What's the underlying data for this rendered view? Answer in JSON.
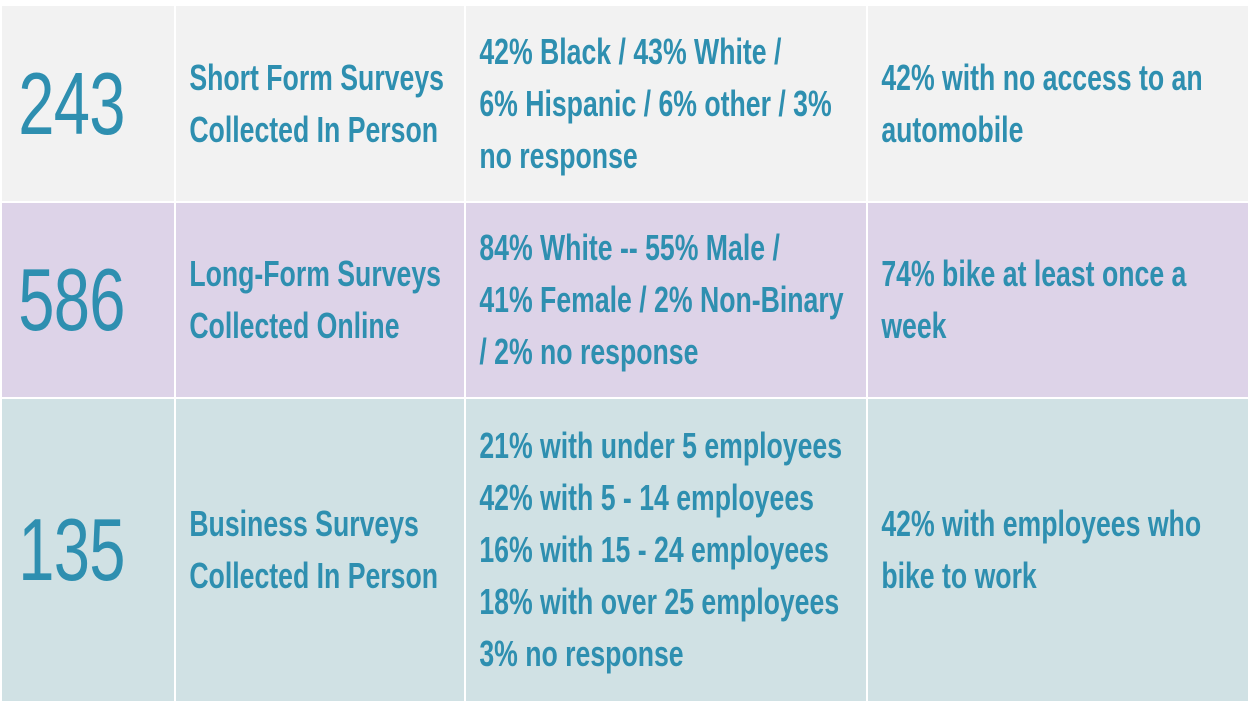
{
  "rows": [
    {
      "count": "243",
      "type_lines": [
        "Short Form Surveys",
        "Collected In Person"
      ],
      "demographics_lines": [
        "42% Black / 43% White /",
        "6% Hispanic / 6% other / 3%",
        "no response"
      ],
      "highlight_lines": [
        "42% with no access to an",
        "automobile"
      ]
    },
    {
      "count": "586",
      "type_lines": [
        "Long-Form Surveys",
        "Collected Online"
      ],
      "demographics_lines": [
        "84% White -- 55% Male /",
        "41% Female / 2% Non-Binary",
        "/ 2% no response"
      ],
      "highlight_lines": [
        "74% bike at least once a",
        "week"
      ]
    },
    {
      "count": "135",
      "type_lines": [
        "Business Surveys",
        "Collected In Person"
      ],
      "demographics_lines": [
        "21% with under 5 employees",
        "42% with 5 - 14 employees",
        "16% with 15 - 24 employees",
        "18% with over 25 employees",
        "3% no response"
      ],
      "highlight_lines": [
        "42% with employees who",
        "bike to work"
      ]
    }
  ],
  "colors": {
    "text": "#2e8fb0",
    "row1_bg": "#f2f2f2",
    "row2_bg": "#ddd3e8",
    "row3_bg": "#d0e1e4",
    "border": "#ffffff"
  }
}
